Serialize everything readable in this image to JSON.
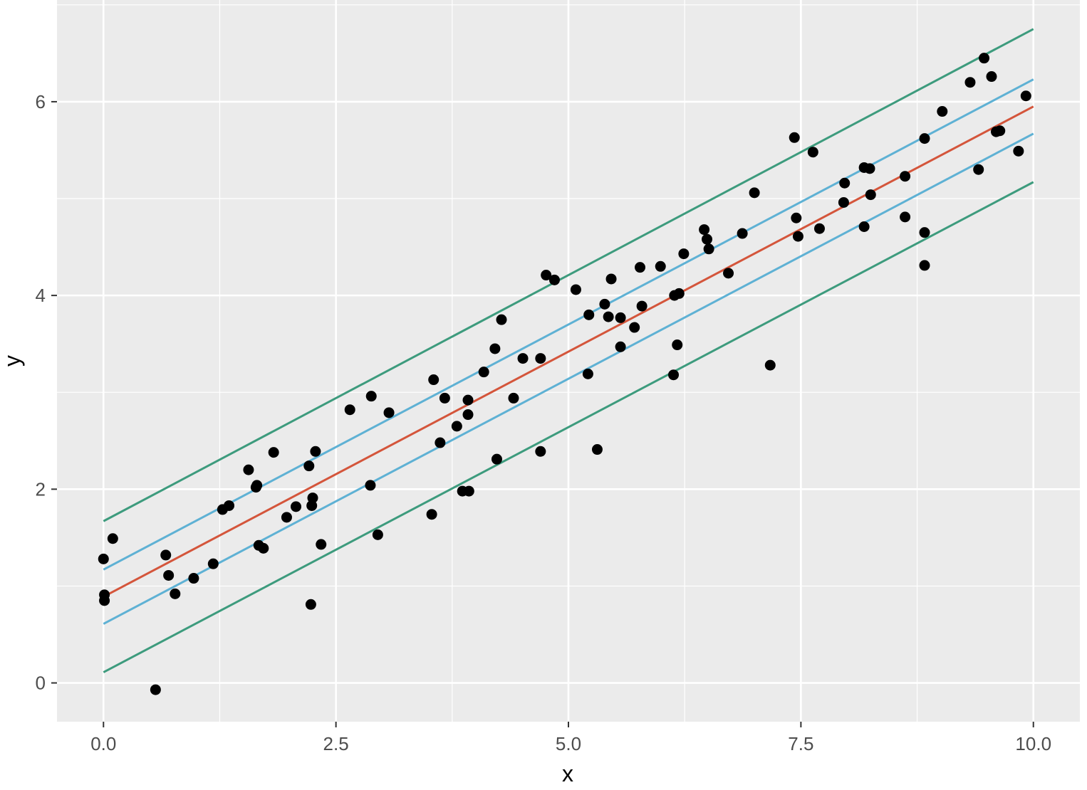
{
  "chart_data": {
    "type": "scatter",
    "title": "",
    "xlabel": "x",
    "ylabel": "y",
    "xlim": [
      -0.5,
      10.5
    ],
    "ylim": [
      -0.4,
      7.05
    ],
    "x_ticks": [
      {
        "value": 0,
        "label": "0.0"
      },
      {
        "value": 2.5,
        "label": "2.5"
      },
      {
        "value": 5,
        "label": "5.0"
      },
      {
        "value": 7.5,
        "label": "7.5"
      },
      {
        "value": 10,
        "label": "10.0"
      }
    ],
    "y_ticks": [
      {
        "value": 0,
        "label": "0"
      },
      {
        "value": 2,
        "label": "2"
      },
      {
        "value": 4,
        "label": "4"
      },
      {
        "value": 6,
        "label": "6"
      }
    ],
    "x_minor": [
      1.25,
      3.75,
      6.25,
      8.75
    ],
    "y_minor": [
      1,
      3,
      5,
      7
    ],
    "grid": true,
    "points": [
      [
        0.0,
        1.28
      ],
      [
        0.01,
        0.91
      ],
      [
        0.01,
        0.85
      ],
      [
        0.1,
        1.49
      ],
      [
        0.56,
        -0.07
      ],
      [
        0.67,
        1.32
      ],
      [
        0.7,
        1.11
      ],
      [
        0.77,
        0.92
      ],
      [
        0.97,
        1.08
      ],
      [
        1.18,
        1.23
      ],
      [
        1.28,
        1.79
      ],
      [
        1.35,
        1.83
      ],
      [
        1.56,
        2.2
      ],
      [
        1.64,
        2.02
      ],
      [
        1.65,
        2.04
      ],
      [
        1.67,
        1.42
      ],
      [
        1.72,
        1.39
      ],
      [
        1.83,
        2.38
      ],
      [
        1.97,
        1.71
      ],
      [
        2.07,
        1.82
      ],
      [
        2.21,
        2.24
      ],
      [
        2.23,
        0.81
      ],
      [
        2.24,
        1.83
      ],
      [
        2.25,
        1.91
      ],
      [
        2.28,
        2.39
      ],
      [
        2.34,
        1.43
      ],
      [
        2.65,
        2.82
      ],
      [
        2.87,
        2.04
      ],
      [
        2.88,
        2.96
      ],
      [
        2.95,
        1.53
      ],
      [
        3.07,
        2.79
      ],
      [
        3.53,
        1.74
      ],
      [
        3.55,
        3.13
      ],
      [
        3.62,
        2.48
      ],
      [
        3.67,
        2.94
      ],
      [
        3.8,
        2.65
      ],
      [
        3.86,
        1.98
      ],
      [
        3.92,
        2.92
      ],
      [
        3.92,
        2.77
      ],
      [
        3.93,
        1.98
      ],
      [
        4.09,
        3.21
      ],
      [
        4.21,
        3.45
      ],
      [
        4.23,
        2.31
      ],
      [
        4.28,
        3.75
      ],
      [
        4.41,
        2.94
      ],
      [
        4.51,
        3.35
      ],
      [
        4.7,
        2.39
      ],
      [
        4.7,
        3.35
      ],
      [
        4.76,
        4.21
      ],
      [
        4.85,
        4.16
      ],
      [
        5.08,
        4.06
      ],
      [
        5.21,
        3.19
      ],
      [
        5.22,
        3.8
      ],
      [
        5.31,
        2.41
      ],
      [
        5.39,
        3.91
      ],
      [
        5.43,
        3.78
      ],
      [
        5.46,
        4.17
      ],
      [
        5.56,
        3.47
      ],
      [
        5.56,
        3.77
      ],
      [
        5.71,
        3.67
      ],
      [
        5.77,
        4.29
      ],
      [
        5.79,
        3.89
      ],
      [
        5.99,
        4.3
      ],
      [
        6.13,
        3.18
      ],
      [
        6.14,
        4.0
      ],
      [
        6.17,
        3.49
      ],
      [
        6.19,
        4.02
      ],
      [
        6.24,
        4.43
      ],
      [
        6.46,
        4.68
      ],
      [
        6.49,
        4.58
      ],
      [
        6.51,
        4.48
      ],
      [
        6.72,
        4.23
      ],
      [
        6.87,
        4.64
      ],
      [
        7.0,
        5.06
      ],
      [
        7.17,
        3.28
      ],
      [
        7.43,
        5.63
      ],
      [
        7.45,
        4.8
      ],
      [
        7.47,
        4.61
      ],
      [
        7.63,
        5.48
      ],
      [
        7.7,
        4.69
      ],
      [
        7.96,
        4.96
      ],
      [
        7.97,
        5.16
      ],
      [
        8.18,
        5.32
      ],
      [
        8.18,
        4.71
      ],
      [
        8.24,
        5.31
      ],
      [
        8.25,
        5.04
      ],
      [
        8.62,
        5.23
      ],
      [
        8.62,
        4.81
      ],
      [
        8.83,
        5.62
      ],
      [
        8.83,
        4.65
      ],
      [
        8.83,
        4.31
      ],
      [
        9.02,
        5.9
      ],
      [
        9.32,
        6.2
      ],
      [
        9.41,
        5.3
      ],
      [
        9.47,
        6.45
      ],
      [
        9.55,
        6.26
      ],
      [
        9.6,
        5.69
      ],
      [
        9.64,
        5.7
      ],
      [
        9.84,
        5.49
      ],
      [
        9.92,
        6.06
      ]
    ],
    "lines": [
      {
        "role": "upper-prediction-band",
        "color": "#3d9b7d",
        "x": [
          0,
          10
        ],
        "y": [
          1.67,
          6.75
        ]
      },
      {
        "role": "upper-confidence-band",
        "color": "#5eb1d4",
        "x": [
          0,
          10
        ],
        "y": [
          1.17,
          6.23
        ]
      },
      {
        "role": "regression-fit",
        "color": "#d4553b",
        "x": [
          0,
          10
        ],
        "y": [
          0.89,
          5.95
        ]
      },
      {
        "role": "lower-confidence-band",
        "color": "#5eb1d4",
        "x": [
          0,
          10
        ],
        "y": [
          0.61,
          5.67
        ]
      },
      {
        "role": "lower-prediction-band",
        "color": "#3d9b7d",
        "x": [
          0,
          10
        ],
        "y": [
          0.11,
          5.17
        ]
      }
    ],
    "colors": {
      "panel_background": "#ebebeb",
      "grid": "#ffffff",
      "points": "#000000"
    }
  }
}
